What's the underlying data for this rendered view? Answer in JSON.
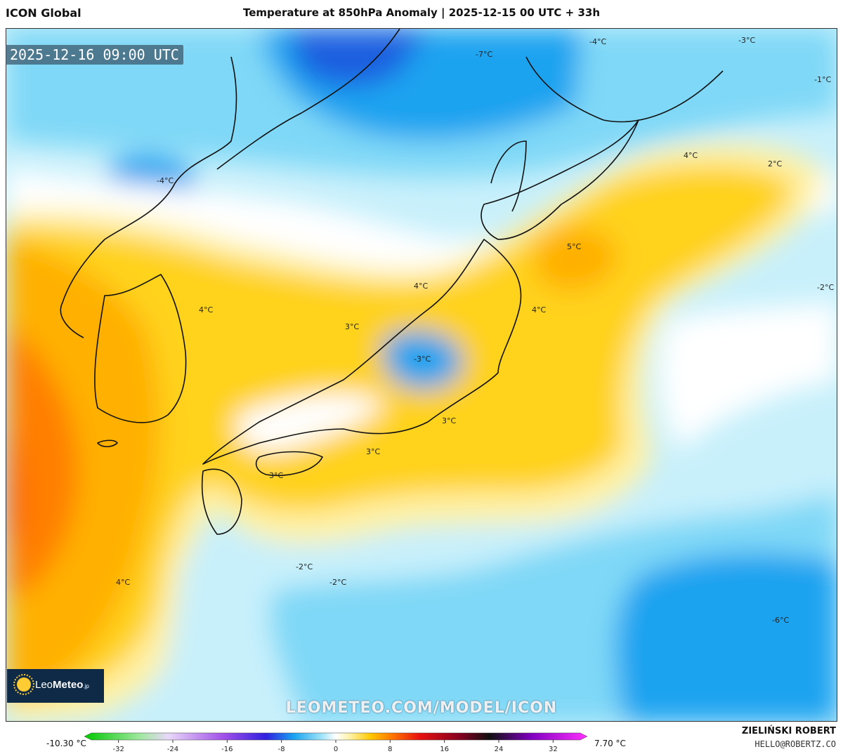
{
  "header": {
    "model_name": "ICON Global",
    "title": "Temperature at 850hPa Anomaly | 2025-12-15 00 UTC + 33h"
  },
  "map": {
    "valid_time": "2025-12-16 09:00 UTC",
    "contour_labels": [
      "-4°C",
      "-7°C",
      "-3°C",
      "-1°C",
      "-4°C",
      "4°C",
      "2°C",
      "5°C",
      "-2°C",
      "4°C",
      "4°C",
      "4°C",
      "3°C",
      "-3°C",
      "3°C",
      "3°C",
      "3°C",
      "-2°C",
      "-2°C",
      "4°C",
      "-6°C"
    ],
    "watermark": "LEOMETEO.COM/MODEL/ICON",
    "colors": {
      "deep_blue": "#1e5fe0",
      "blue": "#1aa3f0",
      "light_blue": "#7fd8f7",
      "pale_blue": "#c8f0fb",
      "white": "#ffffff",
      "pale_yellow": "#fff2a8",
      "yellow": "#ffd21a",
      "orange": "#ffb000",
      "dark_orange": "#ff7f00",
      "red_orange": "#ff5a00"
    }
  },
  "logo": {
    "brand_light": "Leo",
    "brand_bold": "Meteo",
    "suffix": ".jp",
    "icon": "sun-icon"
  },
  "legend": {
    "min_label": "-10.30 °C",
    "max_label": "7.70 °C",
    "tick_labels": [
      "-32",
      "-24",
      "-16",
      "-8",
      "0",
      "8",
      "16",
      "24",
      "32"
    ],
    "tick_values": [
      -32,
      -24,
      -16,
      -8,
      0,
      8,
      16,
      24,
      32
    ],
    "range": [
      -36,
      36
    ],
    "stops": [
      {
        "v": -36,
        "c": "#00c800"
      },
      {
        "v": -28,
        "c": "#a0e8a0"
      },
      {
        "v": -24,
        "c": "#e8d8f8"
      },
      {
        "v": -16,
        "c": "#a050e8"
      },
      {
        "v": -10,
        "c": "#3020e0"
      },
      {
        "v": -6,
        "c": "#1aa3f0"
      },
      {
        "v": -2,
        "c": "#9ee4f8"
      },
      {
        "v": 0,
        "c": "#ffffff"
      },
      {
        "v": 2,
        "c": "#fff2a8"
      },
      {
        "v": 5,
        "c": "#ffc800"
      },
      {
        "v": 8,
        "c": "#ff7800"
      },
      {
        "v": 12,
        "c": "#e81010"
      },
      {
        "v": 18,
        "c": "#800020"
      },
      {
        "v": 22,
        "c": "#101010"
      },
      {
        "v": 28,
        "c": "#8000c0"
      },
      {
        "v": 36,
        "c": "#ff30ff"
      }
    ]
  },
  "footer": {
    "author": "ZIELIŃSKI ROBERT",
    "email": "HELLO@ROBERTZ.CO"
  }
}
